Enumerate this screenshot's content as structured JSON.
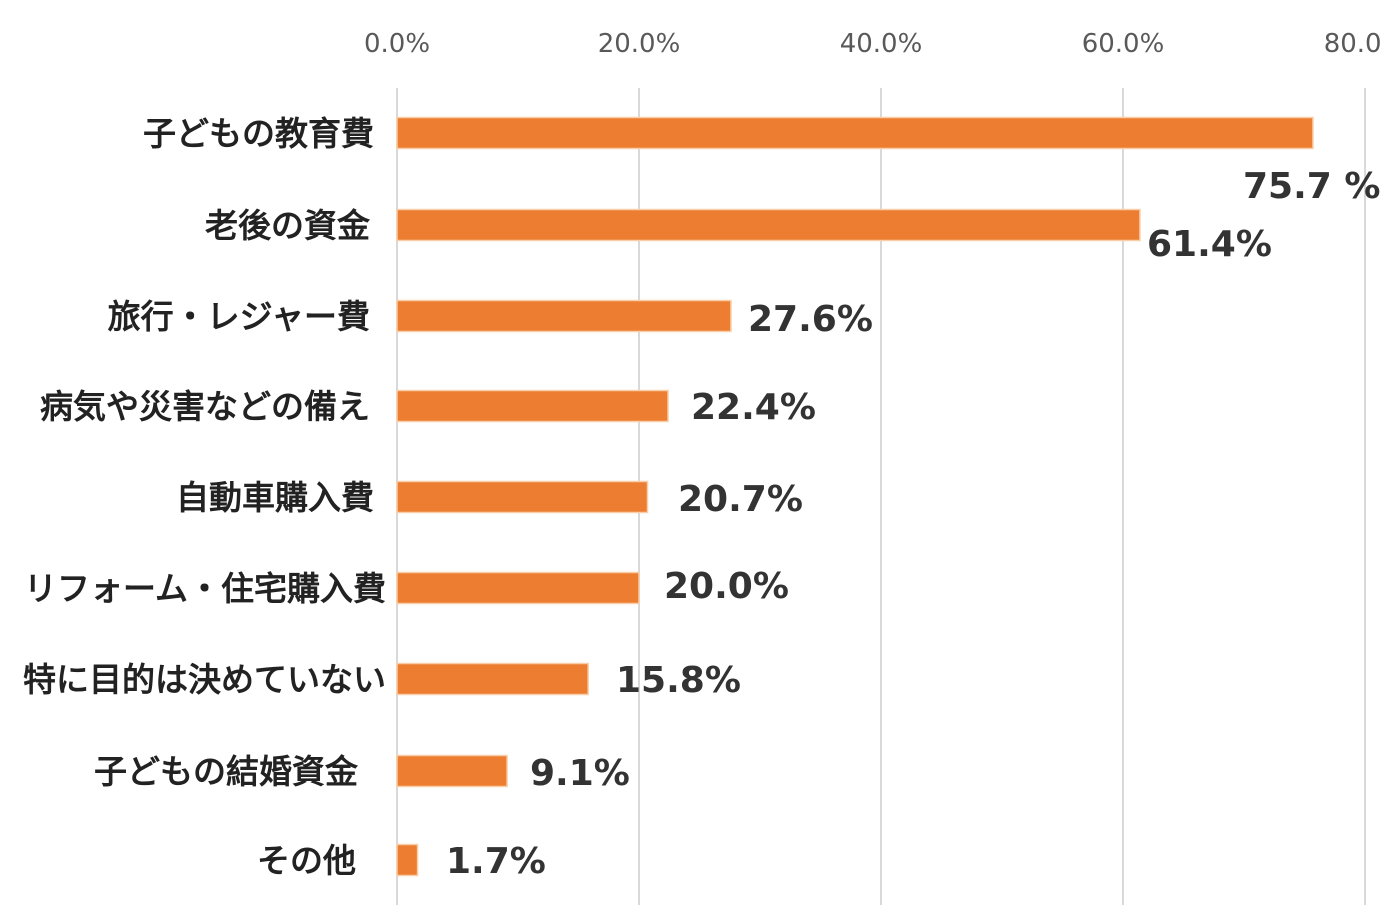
{
  "chart_data": {
    "type": "bar",
    "orientation": "horizontal",
    "categories": [
      "子どもの教育費",
      "老後の資金",
      "旅行・レジャー費",
      "病気や災害などの備え",
      "自動車購入費",
      "リフォーム・住宅購入費",
      "特に目的は決めていない",
      "子どもの結婚資金",
      "その他"
    ],
    "values": [
      75.7,
      61.4,
      27.6,
      22.4,
      20.7,
      20.0,
      15.8,
      9.1,
      1.7
    ],
    "value_labels": [
      "75.7 %",
      "61.4%",
      "27.6%",
      "22.4%",
      "20.7%",
      "20.0%",
      "15.8%",
      "9.1%",
      "1.7%"
    ],
    "x_ticks": [
      "0.0%",
      "20.0%",
      "40.0%",
      "60.0%",
      "80.0%"
    ],
    "xlim": [
      0,
      80
    ],
    "x_axis_position": "top",
    "grid": true,
    "legend": "none",
    "bar_color": "#ED7D31",
    "title": "",
    "xlabel": "",
    "ylabel": ""
  }
}
